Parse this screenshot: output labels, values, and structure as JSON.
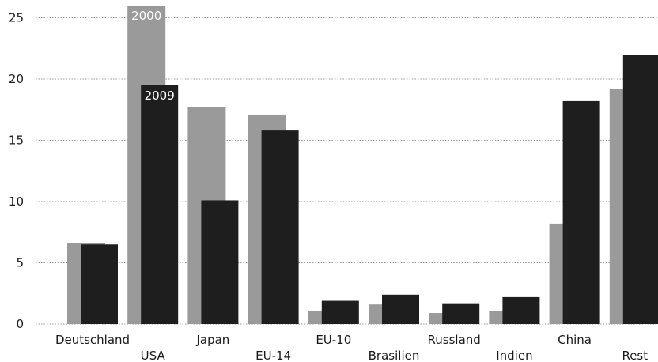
{
  "chart_data": {
    "type": "bar",
    "title": "",
    "xlabel": "",
    "ylabel": "",
    "ylim": [
      0,
      26
    ],
    "yticks": [
      0,
      5,
      10,
      15,
      20,
      25
    ],
    "grid": true,
    "categories": [
      "Deutschland",
      "USA",
      "Japan",
      "EU-14",
      "EU-10",
      "Brasilien",
      "Russland",
      "Indien",
      "China",
      "Rest"
    ],
    "series": [
      {
        "name": "2000",
        "color": "#9a9a9a",
        "values": [
          6.6,
          26.0,
          17.7,
          17.1,
          1.1,
          1.6,
          0.9,
          1.1,
          8.2,
          19.2
        ]
      },
      {
        "name": "2009",
        "color": "#1e1e1e",
        "values": [
          6.5,
          19.5,
          10.1,
          15.8,
          1.9,
          2.4,
          1.7,
          2.2,
          18.2,
          22.0
        ]
      }
    ],
    "annotations": [
      {
        "text": "2000",
        "series": 0,
        "category": 1
      },
      {
        "text": "2009",
        "series": 1,
        "category": 1
      }
    ]
  }
}
